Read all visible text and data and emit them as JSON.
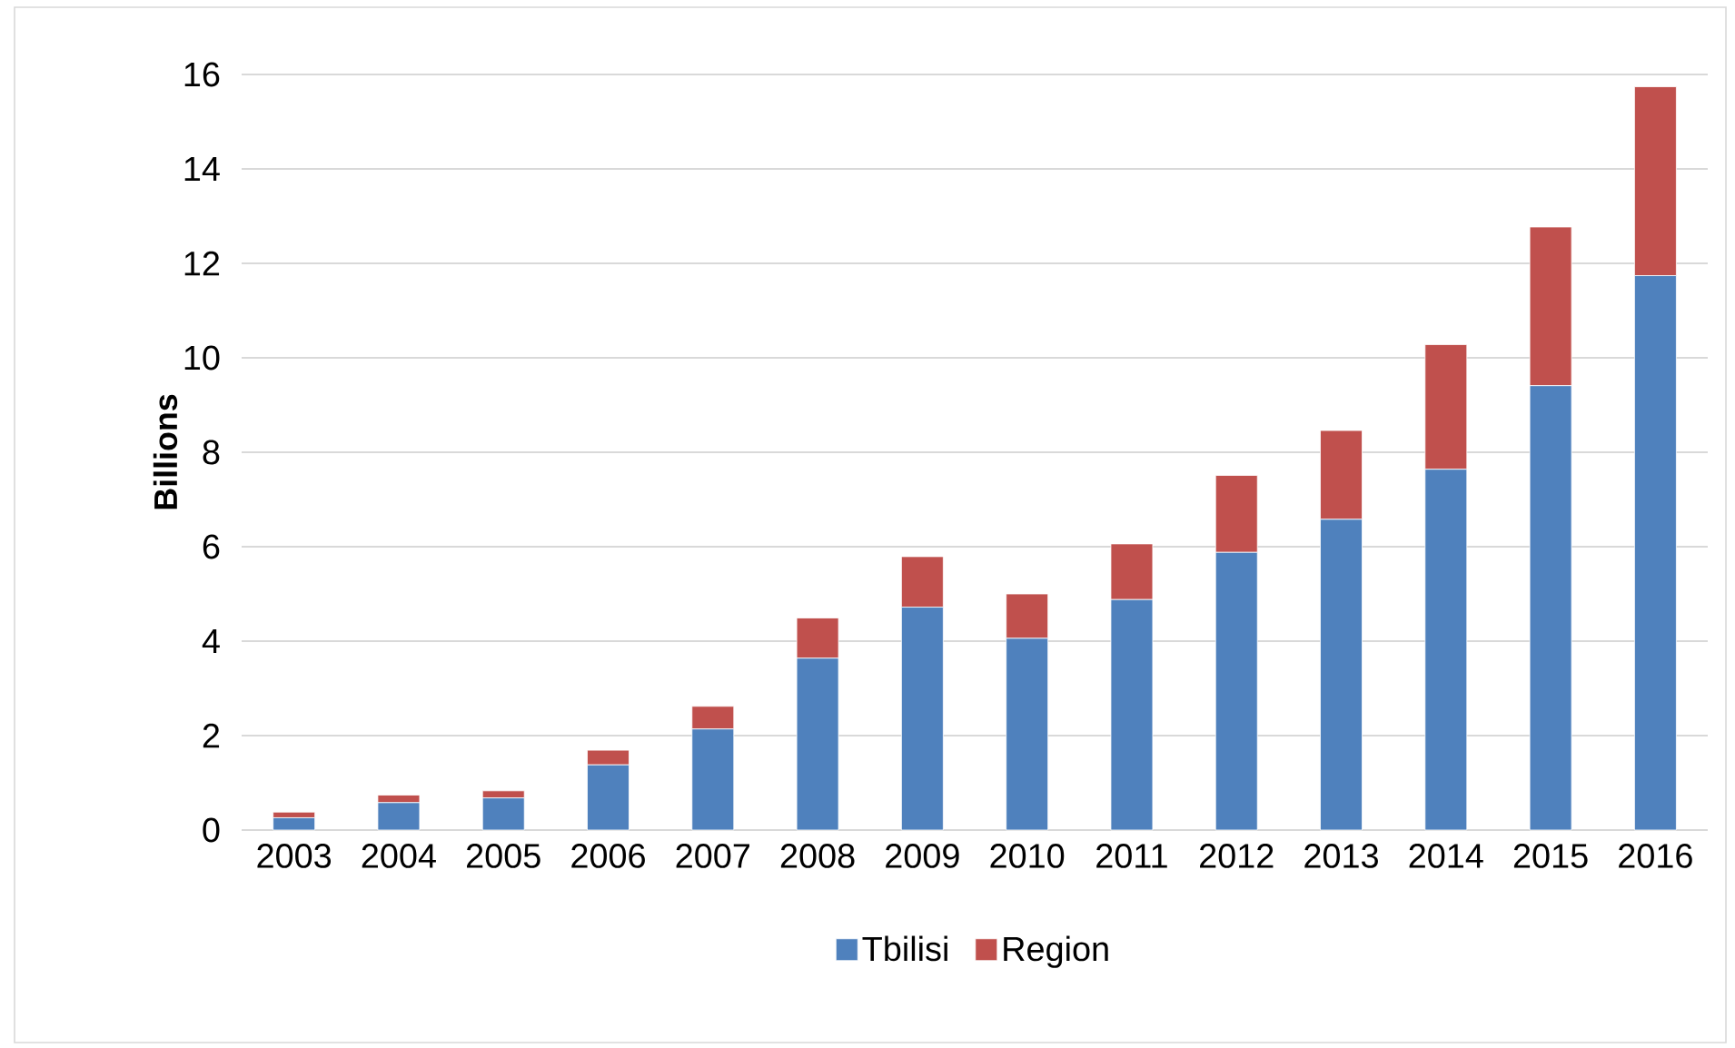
{
  "chart_data": {
    "type": "bar",
    "stacked": true,
    "ylabel": "Billions",
    "categories": [
      "2003",
      "2004",
      "2005",
      "2006",
      "2007",
      "2008",
      "2009",
      "2010",
      "2011",
      "2012",
      "2013",
      "2014",
      "2015",
      "2016"
    ],
    "series": [
      {
        "name": "Tbilisi",
        "color": "#4f81bd",
        "values": [
          0.26,
          0.58,
          0.68,
          1.38,
          2.14,
          3.64,
          4.72,
          4.06,
          4.88,
          5.88,
          6.58,
          7.64,
          9.41,
          11.74
        ]
      },
      {
        "name": "Region",
        "color": "#c0504d",
        "values": [
          0.12,
          0.16,
          0.15,
          0.31,
          0.48,
          0.85,
          1.07,
          0.94,
          1.18,
          1.63,
          1.88,
          2.64,
          3.36,
          4.0
        ]
      }
    ],
    "ylim": [
      0,
      16
    ],
    "yticks": [
      0,
      2,
      4,
      6,
      8,
      10,
      12,
      14,
      16
    ],
    "grid": "y",
    "legend": "bottom"
  }
}
